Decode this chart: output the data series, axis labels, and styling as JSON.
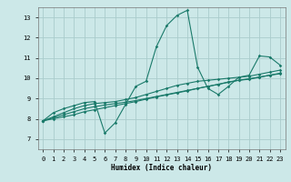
{
  "xlabel": "Humidex (Indice chaleur)",
  "ylabel": "",
  "bg_color": "#cce8e8",
  "grid_color": "#aacccc",
  "line_color": "#1a7a6a",
  "xlim": [
    -0.5,
    23.5
  ],
  "ylim": [
    6.5,
    13.5
  ],
  "xticks": [
    0,
    1,
    2,
    3,
    4,
    5,
    6,
    7,
    8,
    9,
    10,
    11,
    12,
    13,
    14,
    15,
    16,
    17,
    18,
    19,
    20,
    21,
    22,
    23
  ],
  "yticks": [
    7,
    8,
    9,
    10,
    11,
    12,
    13
  ],
  "series1": {
    "x": [
      0,
      1,
      2,
      3,
      4,
      5,
      6,
      7,
      8,
      9,
      10,
      11,
      12,
      13,
      14,
      15,
      16,
      17,
      18,
      19,
      20,
      21,
      22,
      23
    ],
    "y": [
      7.9,
      8.3,
      8.5,
      8.65,
      8.8,
      8.85,
      7.3,
      7.8,
      8.7,
      9.6,
      9.85,
      11.55,
      12.6,
      13.1,
      13.35,
      10.55,
      9.5,
      9.2,
      9.6,
      10.05,
      10.15,
      11.1,
      11.05,
      10.65
    ]
  },
  "series2": {
    "x": [
      0,
      1,
      2,
      3,
      4,
      5,
      6,
      7,
      8,
      9,
      10,
      11,
      12,
      13,
      14,
      15,
      16,
      17,
      18,
      19,
      20,
      21,
      22,
      23
    ],
    "y": [
      7.9,
      8.1,
      8.3,
      8.5,
      8.65,
      8.75,
      8.8,
      8.85,
      8.95,
      9.05,
      9.2,
      9.35,
      9.5,
      9.65,
      9.75,
      9.85,
      9.9,
      9.95,
      10.0,
      10.05,
      10.1,
      10.2,
      10.3,
      10.4
    ]
  },
  "series3": {
    "x": [
      0,
      1,
      2,
      3,
      4,
      5,
      6,
      7,
      8,
      9,
      10,
      11,
      12,
      13,
      14,
      15,
      16,
      17,
      18,
      19,
      20,
      21,
      22,
      23
    ],
    "y": [
      7.9,
      8.05,
      8.2,
      8.35,
      8.5,
      8.6,
      8.68,
      8.75,
      8.82,
      8.9,
      9.0,
      9.1,
      9.2,
      9.3,
      9.4,
      9.5,
      9.6,
      9.7,
      9.8,
      9.9,
      9.95,
      10.05,
      10.15,
      10.25
    ]
  },
  "series4": {
    "x": [
      0,
      1,
      2,
      3,
      4,
      5,
      6,
      7,
      8,
      9,
      10,
      11,
      12,
      13,
      14,
      15,
      16,
      17,
      18,
      19,
      20,
      21,
      22,
      23
    ],
    "y": [
      7.9,
      8.0,
      8.1,
      8.2,
      8.35,
      8.45,
      8.55,
      8.65,
      8.75,
      8.85,
      8.97,
      9.08,
      9.18,
      9.28,
      9.38,
      9.5,
      9.6,
      9.7,
      9.82,
      9.9,
      9.98,
      10.06,
      10.15,
      10.22
    ]
  },
  "xlabel_fontsize": 5.5,
  "tick_fontsize": 5,
  "ytick_fontsize": 5.5,
  "linewidth": 0.8,
  "markersize": 1.8
}
